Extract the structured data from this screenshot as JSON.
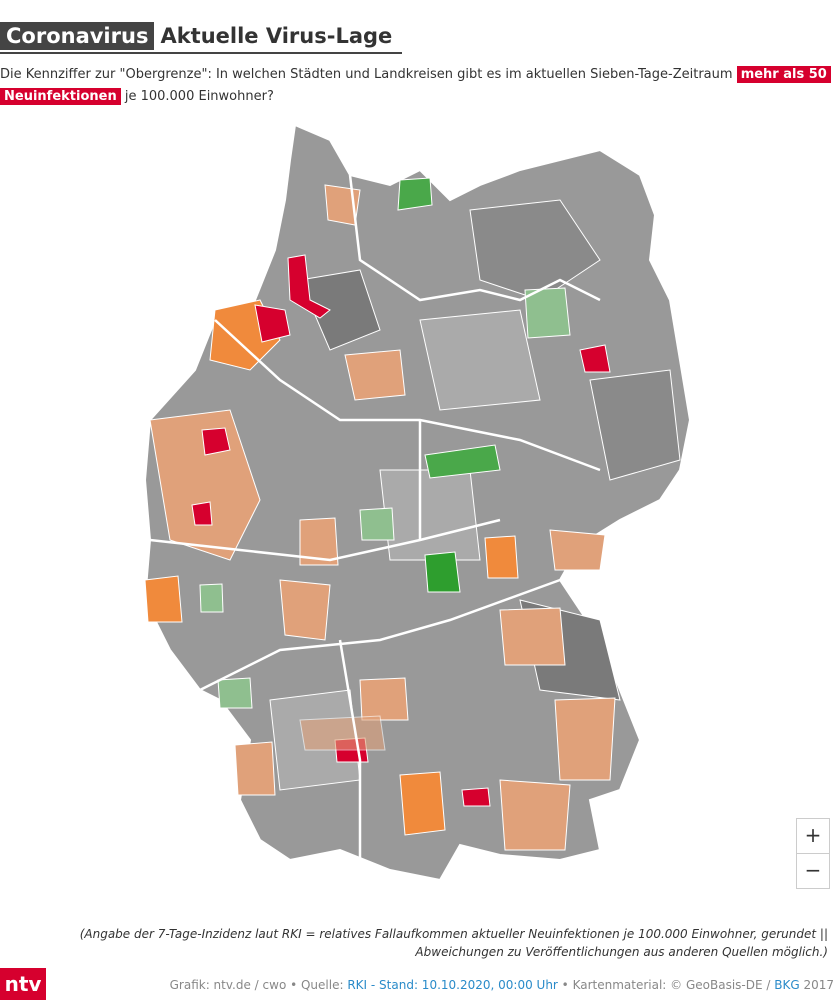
{
  "header": {
    "tag": "Coronavirus",
    "title": "Aktuelle Virus-Lage"
  },
  "subtitle": {
    "before": "Die Kennziffer zur \"Obergrenze\": In welchen Städten und Landkreisen gibt es im aktuellen Sieben-Tage-Zeitraum ",
    "highlight": "mehr als 50 Neuinfektionen",
    "after": " je 100.000 Einwohner?"
  },
  "zoom": {
    "in": "+",
    "out": "−"
  },
  "footnote": "(Angabe der 7-Tage-Inzidenz laut RKI = relatives Fallaufkommen aktueller Neuinfektionen je 100.000 Einwohner, gerundet || Abweichungen zu Veröffentlichungen aus anderen Quellen möglich.)",
  "logo": "ntv",
  "credits": {
    "part1": "Grafik: ntv.de / cwo • Quelle: ",
    "source": "RKI - Stand: 10.10.2020, 00:00 Uhr",
    "part2": " • Kartenmaterial: © GeoBasis-DE / ",
    "bkg": "BKG",
    "part3": " 2017"
  }
}
